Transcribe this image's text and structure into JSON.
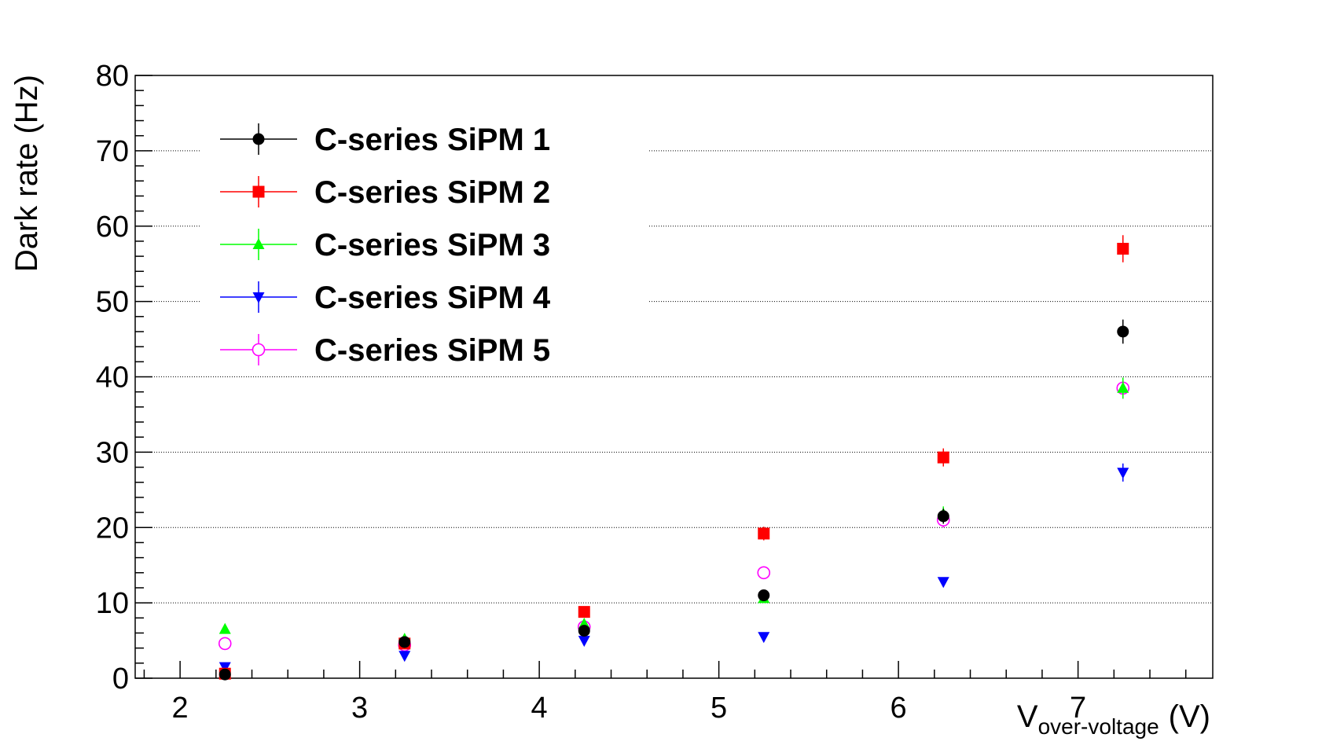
{
  "chart_data": {
    "type": "scatter",
    "title": "",
    "xlabel_main": "V",
    "xlabel_sub": "over-voltage",
    "xlabel_unit": "(V)",
    "ylabel": "Dark rate (Hz)",
    "xlim": [
      1.75,
      7.75
    ],
    "ylim": [
      0,
      80
    ],
    "x_ticks": [
      2,
      3,
      4,
      5,
      6,
      7
    ],
    "y_ticks": [
      0,
      10,
      20,
      30,
      40,
      50,
      60,
      70,
      80
    ],
    "grid_y": true,
    "legend_position": "top-left",
    "series": [
      {
        "name": "C-series SiPM 1",
        "color": "#000000",
        "marker": "filled-circle",
        "points": [
          {
            "x": 2.25,
            "y": 0.5,
            "err": 0.3
          },
          {
            "x": 3.25,
            "y": 4.8,
            "err": 0.4
          },
          {
            "x": 4.25,
            "y": 6.3,
            "err": 0.5
          },
          {
            "x": 5.25,
            "y": 11.0,
            "err": 0.6
          },
          {
            "x": 6.25,
            "y": 21.5,
            "err": 1.0
          },
          {
            "x": 7.25,
            "y": 46.0,
            "err": 1.6
          }
        ]
      },
      {
        "name": "C-series SiPM 2",
        "color": "#ff0000",
        "marker": "filled-square",
        "points": [
          {
            "x": 2.25,
            "y": 0.6,
            "err": 0.3
          },
          {
            "x": 3.25,
            "y": 4.6,
            "err": 0.4
          },
          {
            "x": 4.25,
            "y": 8.8,
            "err": 0.6
          },
          {
            "x": 5.25,
            "y": 19.2,
            "err": 0.9
          },
          {
            "x": 6.25,
            "y": 29.3,
            "err": 1.2
          },
          {
            "x": 7.25,
            "y": 57.0,
            "err": 1.8
          }
        ]
      },
      {
        "name": "C-series SiPM 3",
        "color": "#00ff00",
        "marker": "filled-triangle-up",
        "points": [
          {
            "x": 2.25,
            "y": 6.5,
            "err": 0.5
          },
          {
            "x": 3.25,
            "y": 5.2,
            "err": 0.4
          },
          {
            "x": 4.25,
            "y": 7.2,
            "err": 0.5
          },
          {
            "x": 5.25,
            "y": 10.6,
            "err": 0.6
          },
          {
            "x": 6.25,
            "y": 21.8,
            "err": 1.0
          },
          {
            "x": 7.25,
            "y": 38.5,
            "err": 1.4
          }
        ]
      },
      {
        "name": "C-series SiPM 4",
        "color": "#0000ff",
        "marker": "filled-triangle-down",
        "points": [
          {
            "x": 2.25,
            "y": 1.5,
            "err": 0.3
          },
          {
            "x": 3.25,
            "y": 3.0,
            "err": 0.3
          },
          {
            "x": 4.25,
            "y": 5.0,
            "err": 0.4
          },
          {
            "x": 5.25,
            "y": 5.5,
            "err": 0.4
          },
          {
            "x": 6.25,
            "y": 12.8,
            "err": 0.6
          },
          {
            "x": 7.25,
            "y": 27.3,
            "err": 1.2
          }
        ]
      },
      {
        "name": "C-series SiPM 5",
        "color": "#ff00ff",
        "marker": "open-circle",
        "points": [
          {
            "x": 2.25,
            "y": 4.6,
            "err": 0.4
          },
          {
            "x": 3.25,
            "y": 4.4,
            "err": 0.4
          },
          {
            "x": 4.25,
            "y": 6.8,
            "err": 0.5
          },
          {
            "x": 5.25,
            "y": 14.0,
            "err": 0.7
          },
          {
            "x": 6.25,
            "y": 21.0,
            "err": 1.0
          },
          {
            "x": 7.25,
            "y": 38.5,
            "err": 1.4
          }
        ]
      }
    ]
  }
}
